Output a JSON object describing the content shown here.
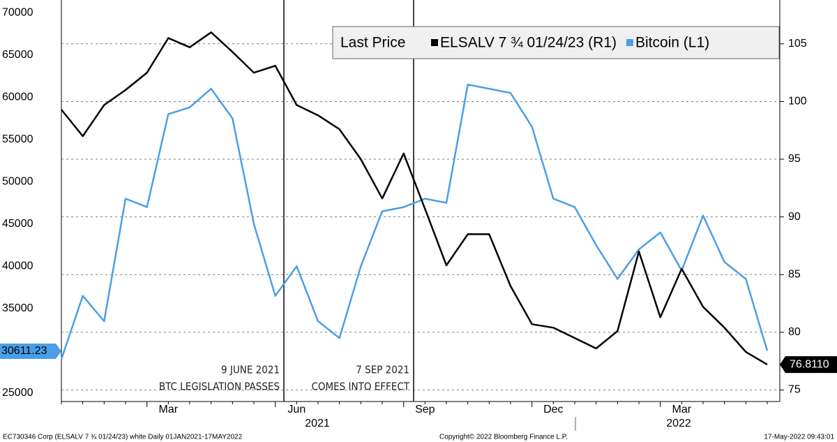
{
  "chart_data": {
    "type": "line",
    "legend_title": "Last Price",
    "categories": [
      null,
      null,
      null,
      null,
      "Mar",
      null,
      null,
      null,
      null,
      null,
      "Jun",
      null,
      null,
      null,
      null,
      null,
      "Sep",
      null,
      null,
      null,
      null,
      null,
      "Dec",
      null,
      null,
      null,
      null,
      null,
      "Mar",
      null,
      null,
      null,
      null,
      null
    ],
    "years": [
      "2021",
      "2022"
    ],
    "series": [
      {
        "name": "ELSALV 7 ¾ 01/24/23 (R1)",
        "color": "#000000",
        "axis": "y2",
        "last_label": "76.8110",
        "values": [
          99.3,
          97,
          99.7,
          101,
          102.5,
          105.5,
          104.7,
          106,
          104.3,
          102.5,
          103.1,
          99.7,
          98.8,
          97.6,
          95,
          91.6,
          95.5,
          90.7,
          85.8,
          88.5,
          88.5,
          84,
          80.7,
          80.4,
          79.5,
          78.6,
          80.1,
          87,
          81.3,
          85.5,
          82.2,
          80.4,
          78.3,
          77.2
        ]
      },
      {
        "name": "Bitcoin (L1)",
        "color": "#4a9ee8",
        "axis": "y",
        "last_label": "30611.23",
        "values": [
          29000,
          36500,
          33500,
          48000,
          47000,
          58000,
          58800,
          61000,
          57500,
          45000,
          36500,
          40000,
          33500,
          31500,
          40000,
          46500,
          47000,
          48000,
          47500,
          61500,
          61000,
          60500,
          56500,
          48000,
          47000,
          42500,
          38500,
          42000,
          44000,
          39500,
          46000,
          40500,
          38500,
          30000
        ]
      }
    ],
    "ylim": [
      24000,
      71500
    ],
    "yticks": [
      25000,
      30000,
      35000,
      40000,
      45000,
      50000,
      55000,
      60000,
      65000,
      70000
    ],
    "y2lim": [
      74,
      108.8
    ],
    "y2ticks": [
      75,
      80,
      85,
      90,
      95,
      100,
      105
    ],
    "grid": true,
    "annotations": [
      {
        "date": "9 JUNE 2021",
        "text": "BTC LEGISLATION PASSES"
      },
      {
        "date": "7 SEP 2021",
        "text": "COMES INTO EFFECT"
      }
    ],
    "footer": {
      "left": "EC730346 Corp (ELSALV 7 ¾ 01/24/23) white  Daily 01JAN2021-17MAY2022",
      "center": "Copyright© 2022 Bloomberg Finance L.P.",
      "right": "17-May-2022 09:43:01"
    }
  }
}
